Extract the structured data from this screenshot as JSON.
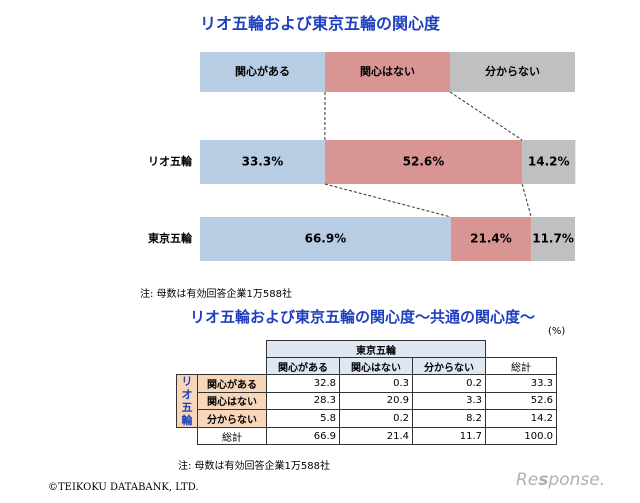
{
  "chart_data": {
    "type": "bar",
    "title": "リオ五輪および東京五輪の関心度",
    "stacked": true,
    "orientation": "horizontal",
    "categories": [
      "リオ五輪",
      "東京五輪"
    ],
    "series": [
      {
        "name": "関心がある",
        "values": [
          33.3,
          66.9
        ],
        "labels": [
          "33.3%",
          "66.9%"
        ],
        "color": "#b8cce4"
      },
      {
        "name": "関心はない",
        "values": [
          52.6,
          21.4
        ],
        "labels": [
          "52.6%",
          "21.4%"
        ],
        "color": "#d99594"
      },
      {
        "name": "分からない",
        "values": [
          14.2,
          11.7
        ],
        "labels": [
          "14.2%",
          "11.7%"
        ],
        "color": "#c0c0c0"
      }
    ],
    "xlim": [
      0,
      100
    ],
    "legend_position": "top",
    "note": "注: 母数は有効回答企業1万588社"
  },
  "table": {
    "title": "リオ五輪および東京五輪の関心度～共通の関心度～",
    "unit": "(%)",
    "col_group": "東京五輪",
    "row_group": [
      "リ",
      "オ",
      "五",
      "輪"
    ],
    "columns": [
      "関心がある",
      "関心はない",
      "分からない",
      "総計"
    ],
    "rows": [
      {
        "label": "関心がある",
        "values": [
          "32.8",
          "0.3",
          "0.2",
          "33.3"
        ]
      },
      {
        "label": "関心はない",
        "values": [
          "28.3",
          "20.9",
          "3.3",
          "52.6"
        ]
      },
      {
        "label": "分からない",
        "values": [
          "5.8",
          "0.2",
          "8.2",
          "14.2"
        ]
      }
    ],
    "total": {
      "label": "総計",
      "values": [
        "66.9",
        "21.4",
        "11.7",
        "100.0"
      ]
    },
    "note": "注: 母数は有効回答企業1万588社"
  },
  "copyright": "©TEIKOKU DATABANK, LTD.",
  "watermark": "Response."
}
